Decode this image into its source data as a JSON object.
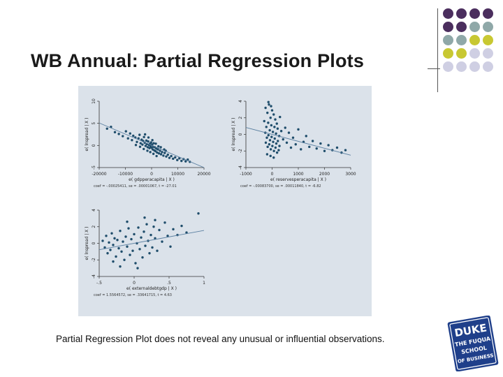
{
  "slide": {
    "title": "WB Annual: Partial Regression Plots",
    "caption": "Partial Regression Plot does not reveal any unusual or influential observations."
  },
  "logo": {
    "text_lines": [
      "DUKE",
      "THE FUQUA",
      "SCHOOL",
      "OF BUSINESS"
    ]
  },
  "colors": {
    "purple": "#4b2e5e",
    "sage": "#8fa8a8",
    "olive": "#c8c832",
    "lavender": "#cfcfe3",
    "point": "#1f4d6b",
    "fit_line": "#5a7fa0",
    "panel_bg": "#dbe2ea"
  },
  "decor_dots": [
    [
      "purple",
      "purple",
      "purple",
      "purple"
    ],
    [
      "purple",
      "purple",
      "sage",
      "sage"
    ],
    [
      "sage",
      "sage",
      "olive",
      "olive"
    ],
    [
      "olive",
      "olive",
      "lavender",
      "lavender"
    ],
    [
      "lavender",
      "lavender",
      "lavender",
      "lavender"
    ]
  ],
  "chart_data": [
    {
      "type": "scatter",
      "title": "",
      "ylabel": "e( lnspread | X )",
      "xlabel": "e( gdpperacapita | X )",
      "xticks": [
        "-20000",
        "-10000",
        "0",
        "10000",
        "20000"
      ],
      "yticks": [
        "-5",
        "0",
        "5",
        "10"
      ],
      "xlim": [
        -20000,
        20000
      ],
      "ylim": [
        -5,
        10
      ],
      "note": "coef = -.00025411, se = .00001067, t = -27.01",
      "fit": {
        "intercept": 0,
        "slope": -0.00025411
      },
      "points": [
        [
          -17000,
          3.8
        ],
        [
          -15500,
          4.2
        ],
        [
          -14000,
          3.0
        ],
        [
          -12500,
          2.6
        ],
        [
          -11000,
          2.1
        ],
        [
          -9800,
          3.2
        ],
        [
          -9000,
          1.6
        ],
        [
          -8200,
          2.7
        ],
        [
          -7500,
          1.2
        ],
        [
          -7000,
          2.2
        ],
        [
          -6200,
          1.8
        ],
        [
          -5600,
          0.8
        ],
        [
          -5000,
          1.6
        ],
        [
          -4600,
          2.4
        ],
        [
          -4200,
          0.5
        ],
        [
          -3800,
          1.3
        ],
        [
          -3500,
          0.2
        ],
        [
          -3200,
          1.0
        ],
        [
          -2900,
          1.9
        ],
        [
          -2600,
          0.6
        ],
        [
          -2300,
          -0.1
        ],
        [
          -2000,
          1.1
        ],
        [
          -1800,
          0.3
        ],
        [
          -1500,
          -0.4
        ],
        [
          -1300,
          0.9
        ],
        [
          -1000,
          0.1
        ],
        [
          -800,
          -0.6
        ],
        [
          -600,
          0.4
        ],
        [
          -400,
          -0.2
        ],
        [
          -200,
          0.7
        ],
        [
          0,
          -0.5
        ],
        [
          200,
          0.2
        ],
        [
          400,
          -0.9
        ],
        [
          600,
          -0.3
        ],
        [
          800,
          0.5
        ],
        [
          1000,
          -1.1
        ],
        [
          1200,
          -0.4
        ],
        [
          1500,
          -1.3
        ],
        [
          1800,
          -0.7
        ],
        [
          2100,
          -1.6
        ],
        [
          2400,
          -0.9
        ],
        [
          2800,
          -1.8
        ],
        [
          3200,
          -1.2
        ],
        [
          3600,
          -2.0
        ],
        [
          4000,
          -1.5
        ],
        [
          4500,
          -2.3
        ],
        [
          5000,
          -1.7
        ],
        [
          5600,
          -2.5
        ],
        [
          6200,
          -2.1
        ],
        [
          6800,
          -2.8
        ],
        [
          7500,
          -2.4
        ],
        [
          8200,
          -3.0
        ],
        [
          9000,
          -2.7
        ],
        [
          9800,
          -3.3
        ],
        [
          10600,
          -2.9
        ],
        [
          11400,
          -3.5
        ],
        [
          12200,
          -3.1
        ],
        [
          13000,
          -3.6
        ],
        [
          13800,
          -3.2
        ],
        [
          14600,
          -3.7
        ],
        [
          -2500,
          2.5
        ],
        [
          -1200,
          1.8
        ],
        [
          300,
          1.2
        ],
        [
          1600,
          0.4
        ],
        [
          2600,
          -0.2
        ],
        [
          -3000,
          -0.8
        ],
        [
          -1600,
          -1.2
        ],
        [
          -500,
          -1.5
        ],
        [
          700,
          -1.9
        ],
        [
          1900,
          -2.4
        ],
        [
          3500,
          -0.4
        ],
        [
          4800,
          -0.9
        ],
        [
          5400,
          -1.2
        ],
        [
          -6000,
          0.1
        ],
        [
          -4400,
          -0.3
        ]
      ]
    },
    {
      "type": "scatter",
      "title": "",
      "ylabel": "e( lnspread | X )",
      "xlabel": "e( reservesperacapita | X )",
      "xticks": [
        "-1000",
        "0",
        "1000",
        "2000",
        "3000"
      ],
      "yticks": [
        "-4",
        "-2",
        "0",
        "2",
        "4"
      ],
      "xlim": [
        -1000,
        3000
      ],
      "ylim": [
        -4,
        4
      ],
      "note": "coef = -.00083700, se = .00011840, t = -6.82",
      "fit": {
        "intercept": 0,
        "slope": -0.000837
      },
      "points": [
        [
          -250,
          3.2
        ],
        [
          -180,
          2.6
        ],
        [
          -120,
          3.6
        ],
        [
          -60,
          2.0
        ],
        [
          0,
          2.9
        ],
        [
          -300,
          1.6
        ],
        [
          -220,
          0.9
        ],
        [
          -150,
          1.4
        ],
        [
          -90,
          0.5
        ],
        [
          -30,
          1.1
        ],
        [
          30,
          0.3
        ],
        [
          90,
          0.9
        ],
        [
          150,
          0.1
        ],
        [
          210,
          0.7
        ],
        [
          270,
          -0.2
        ],
        [
          -260,
          0.2
        ],
        [
          -200,
          -0.4
        ],
        [
          -140,
          -0.1
        ],
        [
          -80,
          -0.7
        ],
        [
          -20,
          -0.3
        ],
        [
          40,
          -0.9
        ],
        [
          100,
          -0.5
        ],
        [
          160,
          -1.1
        ],
        [
          220,
          -0.8
        ],
        [
          280,
          -1.4
        ],
        [
          -240,
          -1.0
        ],
        [
          -170,
          -1.5
        ],
        [
          -110,
          -1.2
        ],
        [
          -50,
          -1.8
        ],
        [
          10,
          -1.4
        ],
        [
          70,
          -2.0
        ],
        [
          130,
          -1.6
        ],
        [
          190,
          -2.2
        ],
        [
          250,
          -1.9
        ],
        [
          -190,
          -2.4
        ],
        [
          -60,
          -2.6
        ],
        [
          60,
          -2.8
        ],
        [
          350,
          0.4
        ],
        [
          420,
          -0.6
        ],
        [
          500,
          0.8
        ],
        [
          560,
          -1.0
        ],
        [
          640,
          0.2
        ],
        [
          720,
          -1.6
        ],
        [
          800,
          -0.4
        ],
        [
          900,
          -1.2
        ],
        [
          1000,
          0.6
        ],
        [
          1100,
          -1.8
        ],
        [
          1200,
          -0.9
        ],
        [
          1300,
          -0.2
        ],
        [
          1420,
          -1.5
        ],
        [
          1550,
          -0.8
        ],
        [
          1700,
          -1.7
        ],
        [
          1850,
          -1.1
        ],
        [
          2000,
          -2.0
        ],
        [
          2150,
          -1.3
        ],
        [
          2300,
          -1.9
        ],
        [
          2480,
          -1.6
        ],
        [
          2650,
          -2.2
        ],
        [
          2800,
          -1.9
        ],
        [
          -140,
          3.9
        ],
        [
          -40,
          3.4
        ],
        [
          60,
          2.4
        ],
        [
          120,
          1.8
        ],
        [
          180,
          1.3
        ],
        [
          300,
          2.1
        ]
      ]
    },
    {
      "type": "scatter",
      "title": "",
      "ylabel": "e( lnspread | X )",
      "xlabel": "e( externaldebtgdp | X )",
      "xticks": [
        "-.5",
        "0",
        ".5",
        "1"
      ],
      "yticks": [
        "-4",
        "-2",
        "0",
        "2",
        "4"
      ],
      "xlim": [
        -0.5,
        1
      ],
      "ylim": [
        -4,
        4
      ],
      "note": "coef = 1.5564572, se = .33641715, t = 4.63",
      "fit": {
        "intercept": 0,
        "slope": 1.5564572
      },
      "points": [
        [
          -0.45,
          0.3
        ],
        [
          -0.42,
          -0.5
        ],
        [
          -0.4,
          0.9
        ],
        [
          -0.38,
          -1.2
        ],
        [
          -0.36,
          0.1
        ],
        [
          -0.34,
          -0.8
        ],
        [
          -0.32,
          1.2
        ],
        [
          -0.3,
          -0.2
        ],
        [
          -0.28,
          0.6
        ],
        [
          -0.26,
          -1.6
        ],
        [
          -0.24,
          0.4
        ],
        [
          -0.22,
          -0.6
        ],
        [
          -0.2,
          1.5
        ],
        [
          -0.18,
          -1.0
        ],
        [
          -0.16,
          0.2
        ],
        [
          -0.14,
          -2.0
        ],
        [
          -0.12,
          0.8
        ],
        [
          -0.1,
          -0.4
        ],
        [
          -0.08,
          1.8
        ],
        [
          -0.06,
          -1.4
        ],
        [
          -0.04,
          0.5
        ],
        [
          -0.02,
          -0.9
        ],
        [
          0.0,
          1.1
        ],
        [
          0.02,
          -2.4
        ],
        [
          0.04,
          0.0
        ],
        [
          0.06,
          1.9
        ],
        [
          0.08,
          -0.7
        ],
        [
          0.1,
          0.7
        ],
        [
          0.12,
          -1.7
        ],
        [
          0.14,
          1.4
        ],
        [
          0.16,
          -0.3
        ],
        [
          0.18,
          2.3
        ],
        [
          0.2,
          0.3
        ],
        [
          0.22,
          -1.2
        ],
        [
          0.24,
          1.0
        ],
        [
          0.26,
          -0.5
        ],
        [
          0.28,
          2.0
        ],
        [
          0.3,
          0.6
        ],
        [
          0.33,
          -0.9
        ],
        [
          0.36,
          1.6
        ],
        [
          0.4,
          0.2
        ],
        [
          0.44,
          2.5
        ],
        [
          0.48,
          0.9
        ],
        [
          0.52,
          -0.4
        ],
        [
          0.56,
          1.7
        ],
        [
          0.62,
          1.0
        ],
        [
          0.68,
          2.1
        ],
        [
          0.75,
          1.3
        ],
        [
          0.92,
          3.6
        ],
        [
          -0.1,
          2.6
        ],
        [
          -0.3,
          -2.2
        ],
        [
          0.05,
          -3.0
        ],
        [
          0.15,
          3.1
        ],
        [
          -0.2,
          -2.8
        ],
        [
          0.3,
          2.8
        ]
      ]
    }
  ]
}
